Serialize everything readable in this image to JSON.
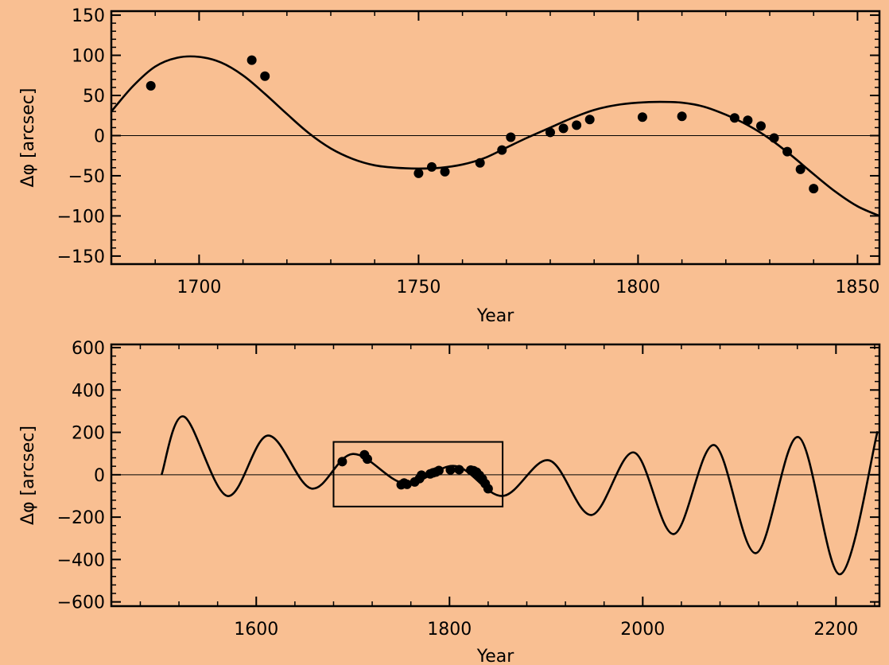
{
  "chart_data": [
    {
      "type": "line",
      "xlabel": "Year",
      "ylabel": "Δφ [arcsec]",
      "xlim": [
        1680,
        1855
      ],
      "ylim": [
        -160,
        155
      ],
      "xticks": [
        1700,
        1750,
        1800,
        1850
      ],
      "yticks": [
        150,
        100,
        50,
        0,
        -50,
        -100,
        -150
      ],
      "ytick_labels": [
        "150",
        "100",
        "50",
        "0",
        "−50",
        "−100",
        "−150"
      ],
      "grid": false,
      "legend": "none",
      "reference_line_y": 0,
      "series": [
        {
          "kind": "line",
          "x": [
            1680,
            1685,
            1690,
            1695,
            1700,
            1705,
            1710,
            1715,
            1720,
            1725,
            1730,
            1735,
            1740,
            1745,
            1750,
            1755,
            1760,
            1765,
            1770,
            1775,
            1780,
            1785,
            1790,
            1795,
            1800,
            1805,
            1810,
            1815,
            1820,
            1825,
            1830,
            1835,
            1840,
            1845,
            1850,
            1855
          ],
          "y": [
            30,
            62,
            86,
            97,
            98,
            91,
            75,
            52,
            27,
            3,
            -16,
            -29,
            -37,
            -40,
            -41,
            -40,
            -36,
            -28,
            -15,
            -2,
            10,
            22,
            32,
            38,
            41,
            42,
            41,
            36,
            26,
            13,
            -4,
            -25,
            -48,
            -70,
            -88,
            -100
          ]
        },
        {
          "kind": "scatter",
          "x": [
            1689,
            1712,
            1715,
            1750,
            1753,
            1756,
            1764,
            1769,
            1771,
            1780,
            1783,
            1786,
            1789,
            1801,
            1810,
            1822,
            1825,
            1828,
            1831,
            1834,
            1837,
            1840
          ],
          "y": [
            62,
            94,
            74,
            -47,
            -39,
            -45,
            -34,
            -18,
            -2,
            4,
            9,
            13,
            20,
            23,
            24,
            22,
            19,
            12,
            -3,
            -20,
            -42,
            -66
          ]
        }
      ]
    },
    {
      "type": "line",
      "xlabel": "Year",
      "ylabel": "Δφ [arcsec]",
      "xlim": [
        1450,
        2245
      ],
      "ylim": [
        -620,
        615
      ],
      "xticks": [
        1600,
        1800,
        2000,
        2200
      ],
      "yticks": [
        600,
        400,
        200,
        0,
        -200,
        -400,
        -600
      ],
      "ytick_labels": [
        "600",
        "400",
        "200",
        "0",
        "−200",
        "−400",
        "−600"
      ],
      "grid": false,
      "legend": "none",
      "reference_line_y": 0,
      "highlight_box": {
        "x": [
          1680,
          1855
        ],
        "y": [
          -150,
          155
        ]
      },
      "series": [
        {
          "kind": "line",
          "x": [
            1502,
            1525,
            1570,
            1612,
            1657,
            1700,
            1754,
            1806,
            1855,
            1903,
            1947,
            1991,
            2032,
            2074,
            2117,
            2161,
            2204,
            2243
          ],
          "y": [
            0,
            275,
            -100,
            185,
            -65,
            98,
            -42,
            41,
            -100,
            68,
            -190,
            105,
            -280,
            140,
            -370,
            178,
            -470,
            205
          ]
        },
        {
          "kind": "scatter",
          "x": [
            1689,
            1712,
            1715,
            1750,
            1753,
            1756,
            1764,
            1769,
            1771,
            1780,
            1783,
            1786,
            1789,
            1801,
            1810,
            1822,
            1825,
            1828,
            1831,
            1834,
            1837,
            1840
          ],
          "y": [
            62,
            94,
            74,
            -47,
            -39,
            -45,
            -34,
            -18,
            -2,
            4,
            9,
            13,
            20,
            23,
            24,
            22,
            19,
            12,
            -3,
            -20,
            -42,
            -66
          ]
        }
      ]
    }
  ]
}
